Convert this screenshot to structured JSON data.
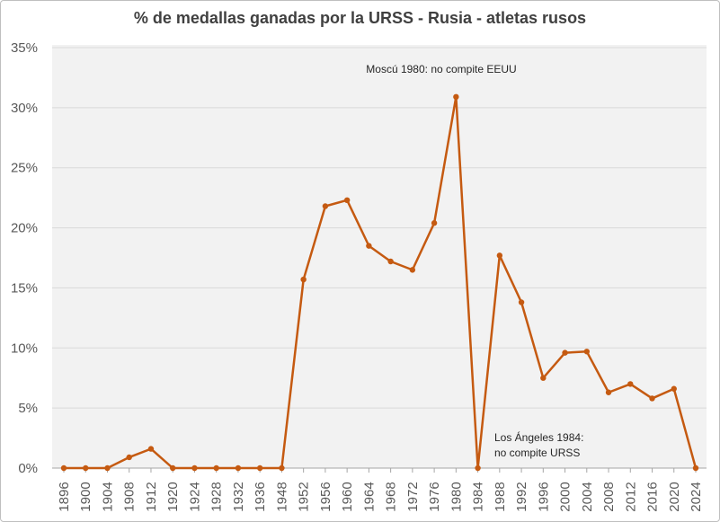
{
  "chart_data": {
    "type": "line",
    "title": "% de medallas ganadas por la URSS - Rusia - atletas rusos",
    "x": [
      "1896",
      "1900",
      "1904",
      "1908",
      "1912",
      "1920",
      "1924",
      "1928",
      "1932",
      "1936",
      "1948",
      "1952",
      "1956",
      "1960",
      "1964",
      "1968",
      "1972",
      "1976",
      "1980",
      "1984",
      "1988",
      "1992",
      "1996",
      "2000",
      "2004",
      "2008",
      "2012",
      "2016",
      "2020",
      "2024"
    ],
    "values": [
      0,
      0,
      0,
      0.9,
      1.6,
      0,
      0,
      0,
      0,
      0,
      0,
      15.7,
      21.8,
      22.3,
      18.5,
      17.2,
      16.5,
      20.4,
      30.9,
      0,
      17.7,
      13.8,
      7.5,
      9.6,
      9.7,
      6.3,
      7.0,
      5.8,
      6.6,
      0
    ],
    "y_ticks": [
      "0%",
      "5%",
      "10%",
      "15%",
      "20%",
      "25%",
      "30%",
      "35%"
    ],
    "ylim": [
      0,
      35
    ],
    "grid": true,
    "line_color": "#c55a11",
    "annotations": [
      {
        "text": [
          "Moscú 1980: no compite EEUU"
        ],
        "x": "1980"
      },
      {
        "text": [
          "Los Ángeles 1984:",
          "no compite URSS"
        ],
        "x": "1984"
      }
    ]
  }
}
